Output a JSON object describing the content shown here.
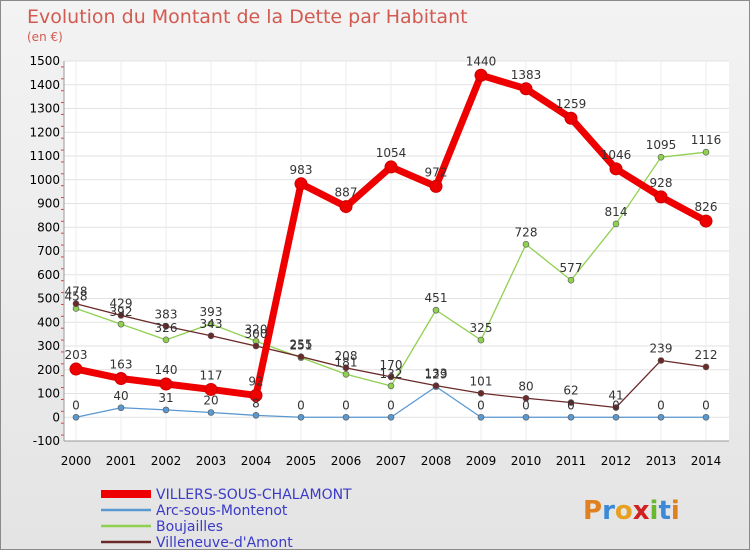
{
  "chart_data": {
    "type": "line",
    "title": "Evolution du Montant de la Dette par Habitant",
    "subtitle": "(en €)",
    "ylim": [
      -100,
      1500
    ],
    "y_ticks": [
      -100,
      0,
      100,
      200,
      300,
      400,
      500,
      600,
      700,
      800,
      900,
      1000,
      1100,
      1200,
      1300,
      1400,
      1500
    ],
    "x": [
      2000,
      2001,
      2002,
      2003,
      2004,
      2005,
      2006,
      2007,
      2008,
      2009,
      2010,
      2011,
      2012,
      2013,
      2014
    ],
    "grid": true,
    "legend_position": "bottom-left",
    "series": [
      {
        "name": "VILLERS-SOUS-CHALAMONT",
        "color": "#ee0000",
        "width": 7,
        "marker": 6,
        "values": [
          203,
          163,
          140,
          117,
          92,
          983,
          887,
          1054,
          972,
          1440,
          1383,
          1259,
          1046,
          928,
          826
        ],
        "labels": [
          "203",
          "163",
          "140",
          "117",
          "92",
          "983",
          "887",
          "1054",
          "972",
          "1440",
          "1383",
          "1259",
          "1046",
          "928",
          "826"
        ]
      },
      {
        "name": "Arc-sous-Montenot",
        "color": "#5a98d0",
        "width": 1.3,
        "marker": 3,
        "values": [
          0,
          40,
          31,
          20,
          8,
          0,
          0,
          0,
          129,
          0,
          0,
          0,
          0,
          0,
          0
        ],
        "labels": [
          "0",
          "40",
          "31",
          "20",
          "8",
          "0",
          "0",
          "0",
          "129",
          "0",
          "0",
          "0",
          "0",
          "0",
          "0"
        ]
      },
      {
        "name": "Boujailles",
        "color": "#90d050",
        "width": 1.3,
        "marker": 3,
        "values": [
          458,
          392,
          326,
          393,
          320,
          251,
          181,
          132,
          451,
          325,
          728,
          577,
          814,
          1095,
          1116
        ],
        "labels": [
          "458",
          "392",
          "326",
          "393",
          "320",
          "251",
          "181",
          "132",
          "451",
          "325",
          "728",
          "577",
          "814",
          "1095",
          "1116"
        ]
      },
      {
        "name": "Villeneuve-d'Amont",
        "color": "#6a2a2a",
        "width": 1.3,
        "marker": 3,
        "values": [
          478,
          429,
          383,
          343,
          300,
          255,
          208,
          170,
          133,
          101,
          80,
          62,
          41,
          239,
          212
        ],
        "labels": [
          "478",
          "429",
          "383",
          "343",
          "300",
          "255",
          "208",
          "170",
          "133",
          "101",
          "80",
          "62",
          "41",
          "239",
          "212"
        ]
      }
    ]
  },
  "logo": {
    "text": "Proxiti",
    "letters": [
      "P",
      "r",
      "o",
      "x",
      "i",
      "t",
      "i"
    ],
    "colors": [
      "#e08020",
      "#3a8ad8",
      "#e8a020",
      "#d02020",
      "#6ab830",
      "#3a8ad8",
      "#e08020"
    ]
  }
}
